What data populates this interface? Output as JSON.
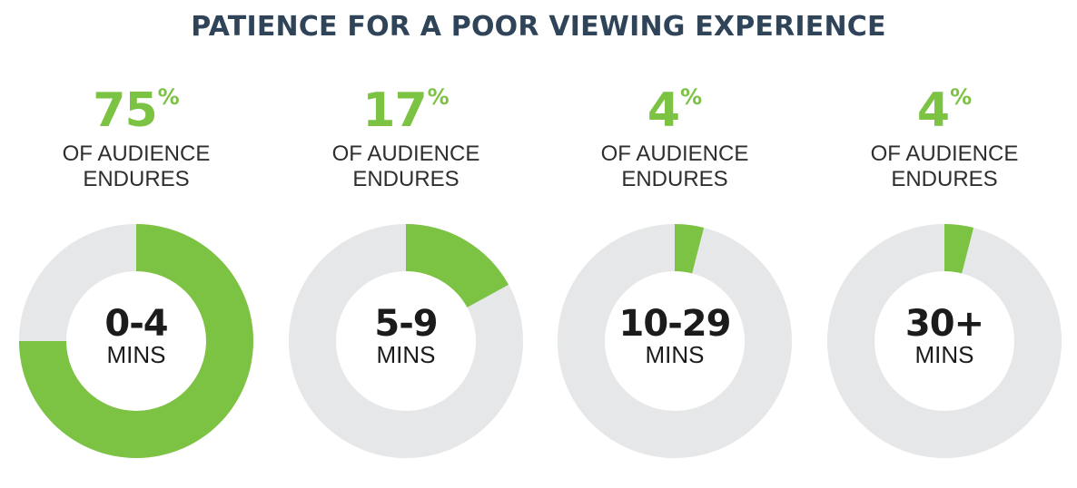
{
  "title": "PATIENCE FOR A POOR VIEWING EXPERIENCE",
  "chart_data": [
    {
      "type": "pie",
      "category": "0-4",
      "unit": "MINS",
      "value": 75,
      "value_label": "75",
      "percent_symbol": "%",
      "caption_line1": "OF AUDIENCE",
      "caption_line2": "ENDURES"
    },
    {
      "type": "pie",
      "category": "5-9",
      "unit": "MINS",
      "value": 17,
      "value_label": "17",
      "percent_symbol": "%",
      "caption_line1": "OF AUDIENCE",
      "caption_line2": "ENDURES"
    },
    {
      "type": "pie",
      "category": "10-29",
      "unit": "MINS",
      "value": 4,
      "value_label": "4",
      "percent_symbol": "%",
      "caption_line1": "OF AUDIENCE",
      "caption_line2": "ENDURES"
    },
    {
      "type": "pie",
      "category": "30+",
      "unit": "MINS",
      "value": 4,
      "value_label": "4",
      "percent_symbol": "%",
      "caption_line1": "OF AUDIENCE",
      "caption_line2": "ENDURES"
    }
  ],
  "colors": {
    "accent": "#7cc243",
    "track": "#e6e7e8",
    "title": "#2f4458",
    "text": "#1b1b1b"
  }
}
